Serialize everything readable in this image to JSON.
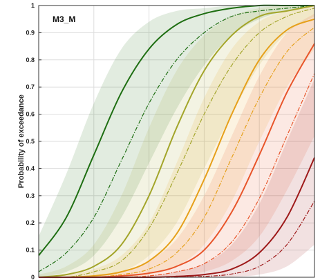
{
  "chart_data": {
    "type": "line",
    "panel_label": "M3_M",
    "ylabel": "Probability of exceedance",
    "xlabel": "",
    "ylim": [
      0,
      1
    ],
    "xlim": [
      0,
      1
    ],
    "y_ticks": [
      "0",
      "0.1",
      "0.2",
      "0.3",
      "0.4",
      "0.5",
      "0.6",
      "0.7",
      "0.8",
      "0.9",
      "1"
    ],
    "y_tick_values": [
      0,
      0.1,
      0.2,
      0.3,
      0.4,
      0.5,
      0.6,
      0.7,
      0.8,
      0.9,
      1
    ],
    "x_grid_values": [
      0.2,
      0.4,
      0.6,
      0.8
    ],
    "grid": true,
    "legend": "none",
    "series": [
      {
        "color": "#1e6e12",
        "solid": {
          "x": [
            0,
            0.1,
            0.2,
            0.3,
            0.4,
            0.5,
            0.6,
            0.7,
            0.8,
            0.9,
            1
          ],
          "y": [
            0.08,
            0.22,
            0.45,
            0.68,
            0.84,
            0.93,
            0.97,
            0.99,
            1,
            1,
            1
          ]
        },
        "dashed": {
          "x": [
            0,
            0.1,
            0.2,
            0.3,
            0.4,
            0.5,
            0.6,
            0.7,
            0.8,
            0.9,
            1
          ],
          "y": [
            0.02,
            0.09,
            0.22,
            0.43,
            0.64,
            0.8,
            0.9,
            0.96,
            0.98,
            0.99,
            1
          ]
        },
        "band_upper": [
          0.15,
          0.38,
          0.64,
          0.84,
          0.94,
          0.98,
          0.99,
          1,
          1,
          1,
          1
        ],
        "band_lower": [
          0,
          0.02,
          0.08,
          0.22,
          0.42,
          0.62,
          0.78,
          0.89,
          0.95,
          0.98,
          1
        ]
      },
      {
        "color": "#a3a52a",
        "solid": {
          "x": [
            0,
            0.1,
            0.2,
            0.3,
            0.4,
            0.5,
            0.6,
            0.7,
            0.8,
            0.9,
            1
          ],
          "y": [
            0,
            0.01,
            0.04,
            0.12,
            0.3,
            0.55,
            0.76,
            0.89,
            0.96,
            0.98,
            1
          ]
        },
        "dashed": {
          "x": [
            0,
            0.1,
            0.2,
            0.3,
            0.4,
            0.5,
            0.6,
            0.7,
            0.8,
            0.9,
            1
          ],
          "y": [
            0,
            0,
            0.02,
            0.06,
            0.18,
            0.38,
            0.6,
            0.78,
            0.9,
            0.96,
            0.99
          ]
        },
        "band_upper": [
          0.01,
          0.04,
          0.12,
          0.3,
          0.55,
          0.76,
          0.89,
          0.96,
          0.99,
          1,
          1
        ],
        "band_lower": [
          0,
          0,
          0,
          0.02,
          0.08,
          0.2,
          0.4,
          0.6,
          0.78,
          0.9,
          0.96
        ]
      },
      {
        "color": "#e6a01a",
        "solid": {
          "x": [
            0,
            0.1,
            0.2,
            0.3,
            0.4,
            0.5,
            0.6,
            0.7,
            0.8,
            0.9,
            1
          ],
          "y": [
            0,
            0,
            0.005,
            0.02,
            0.06,
            0.16,
            0.36,
            0.6,
            0.8,
            0.91,
            0.95
          ]
        },
        "dashed": {
          "x": [
            0,
            0.1,
            0.2,
            0.3,
            0.4,
            0.5,
            0.6,
            0.7,
            0.8,
            0.9,
            1
          ],
          "y": [
            0,
            0,
            0,
            0.01,
            0.03,
            0.09,
            0.22,
            0.44,
            0.66,
            0.83,
            0.92
          ]
        },
        "band_upper": [
          0,
          0.01,
          0.03,
          0.08,
          0.2,
          0.42,
          0.66,
          0.84,
          0.94,
          0.98,
          1
        ],
        "band_lower": [
          0,
          0,
          0,
          0,
          0.01,
          0.04,
          0.12,
          0.28,
          0.5,
          0.7,
          0.84
        ]
      },
      {
        "color": "#e8552a",
        "solid": {
          "x": [
            0,
            0.1,
            0.2,
            0.3,
            0.4,
            0.5,
            0.6,
            0.7,
            0.8,
            0.9,
            1
          ],
          "y": [
            0,
            0,
            0,
            0.005,
            0.015,
            0.04,
            0.1,
            0.24,
            0.45,
            0.68,
            0.86
          ]
        },
        "dashed": {
          "x": [
            0,
            0.1,
            0.2,
            0.3,
            0.4,
            0.5,
            0.6,
            0.7,
            0.8,
            0.9,
            1
          ],
          "y": [
            0,
            0,
            0,
            0,
            0.005,
            0.02,
            0.05,
            0.13,
            0.29,
            0.52,
            0.75
          ]
        },
        "band_upper": [
          0,
          0,
          0.005,
          0.02,
          0.06,
          0.14,
          0.3,
          0.52,
          0.74,
          0.9,
          0.97
        ],
        "band_lower": [
          0,
          0,
          0,
          0,
          0,
          0.005,
          0.02,
          0.06,
          0.15,
          0.32,
          0.52
        ]
      },
      {
        "color": "#9e1a1a",
        "solid": {
          "x": [
            0,
            0.1,
            0.2,
            0.3,
            0.4,
            0.5,
            0.6,
            0.7,
            0.8,
            0.9,
            1
          ],
          "y": [
            0,
            0,
            0,
            0,
            0,
            0.003,
            0.01,
            0.03,
            0.09,
            0.22,
            0.44
          ]
        },
        "dashed": {
          "x": [
            0,
            0.1,
            0.2,
            0.3,
            0.4,
            0.5,
            0.6,
            0.7,
            0.8,
            0.9,
            1
          ],
          "y": [
            0,
            0,
            0,
            0,
            0,
            0,
            0.003,
            0.012,
            0.04,
            0.12,
            0.28
          ]
        },
        "band_upper": [
          0,
          0,
          0,
          0,
          0.005,
          0.02,
          0.05,
          0.12,
          0.27,
          0.5,
          0.73
        ],
        "band_lower": [
          0,
          0,
          0,
          0,
          0,
          0,
          0,
          0.002,
          0.01,
          0.04,
          0.12
        ]
      }
    ]
  }
}
